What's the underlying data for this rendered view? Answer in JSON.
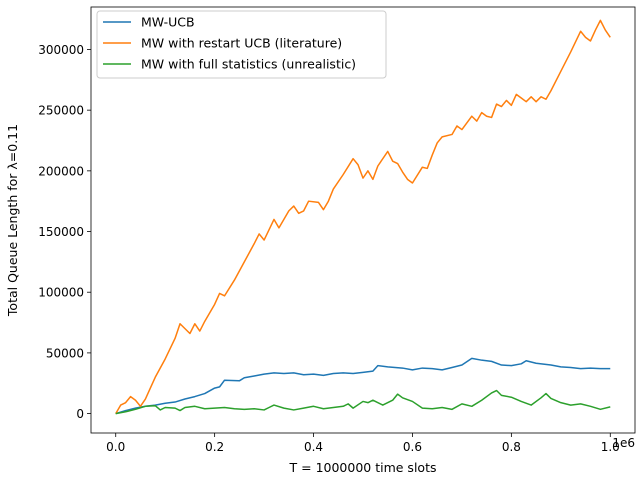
{
  "chart_data": {
    "type": "line",
    "xlabel": "T = 1000000 time slots",
    "ylabel": "Total Queue Length for λ=0.11",
    "xlim": [
      -0.05,
      1.05
    ],
    "ylim": [
      -16000,
      335000
    ],
    "x_ticks": [
      0.0,
      0.2,
      0.4,
      0.6,
      0.8,
      1.0
    ],
    "x_tick_labels": [
      "0.0",
      "0.2",
      "0.4",
      "0.6",
      "0.8",
      "1.0"
    ],
    "x_offset_label": "1e6",
    "y_ticks": [
      0,
      50000,
      100000,
      150000,
      200000,
      250000,
      300000
    ],
    "y_tick_labels": [
      "0",
      "50000",
      "100000",
      "150000",
      "200000",
      "250000",
      "300000"
    ],
    "legend_position": "upper-left",
    "grid": false,
    "series": [
      {
        "name": "MW-UCB",
        "color": "#1f77b4",
        "points": [
          [
            0.0,
            0
          ],
          [
            0.02,
            2500
          ],
          [
            0.04,
            4500
          ],
          [
            0.06,
            6000
          ],
          [
            0.08,
            7000
          ],
          [
            0.1,
            8500
          ],
          [
            0.12,
            9500
          ],
          [
            0.14,
            12000
          ],
          [
            0.16,
            14000
          ],
          [
            0.18,
            16500
          ],
          [
            0.2,
            21000
          ],
          [
            0.21,
            22000
          ],
          [
            0.22,
            27500
          ],
          [
            0.25,
            27000
          ],
          [
            0.26,
            29500
          ],
          [
            0.28,
            31000
          ],
          [
            0.3,
            32500
          ],
          [
            0.32,
            33500
          ],
          [
            0.34,
            33000
          ],
          [
            0.36,
            33500
          ],
          [
            0.38,
            32000
          ],
          [
            0.4,
            32500
          ],
          [
            0.42,
            31500
          ],
          [
            0.44,
            33000
          ],
          [
            0.46,
            33500
          ],
          [
            0.48,
            33000
          ],
          [
            0.5,
            34000
          ],
          [
            0.52,
            35000
          ],
          [
            0.53,
            39500
          ],
          [
            0.55,
            38500
          ],
          [
            0.58,
            37500
          ],
          [
            0.6,
            36000
          ],
          [
            0.62,
            37500
          ],
          [
            0.64,
            37000
          ],
          [
            0.66,
            36000
          ],
          [
            0.68,
            38000
          ],
          [
            0.7,
            40000
          ],
          [
            0.72,
            45500
          ],
          [
            0.74,
            44000
          ],
          [
            0.76,
            43000
          ],
          [
            0.78,
            40000
          ],
          [
            0.8,
            39500
          ],
          [
            0.82,
            41000
          ],
          [
            0.83,
            43500
          ],
          [
            0.85,
            41500
          ],
          [
            0.88,
            40000
          ],
          [
            0.9,
            38500
          ],
          [
            0.92,
            38000
          ],
          [
            0.94,
            37000
          ],
          [
            0.96,
            37500
          ],
          [
            0.98,
            37000
          ],
          [
            1.0,
            37000
          ]
        ]
      },
      {
        "name": "MW with restart UCB (literature)",
        "color": "#ff7f0e",
        "points": [
          [
            0.0,
            0
          ],
          [
            0.01,
            7000
          ],
          [
            0.02,
            9000
          ],
          [
            0.03,
            14000
          ],
          [
            0.04,
            11000
          ],
          [
            0.05,
            6000
          ],
          [
            0.06,
            12000
          ],
          [
            0.07,
            21000
          ],
          [
            0.08,
            30000
          ],
          [
            0.1,
            45000
          ],
          [
            0.12,
            62000
          ],
          [
            0.13,
            74000
          ],
          [
            0.14,
            70000
          ],
          [
            0.15,
            66000
          ],
          [
            0.16,
            74000
          ],
          [
            0.17,
            68000
          ],
          [
            0.18,
            76000
          ],
          [
            0.2,
            90000
          ],
          [
            0.21,
            99000
          ],
          [
            0.22,
            97000
          ],
          [
            0.24,
            110000
          ],
          [
            0.26,
            125000
          ],
          [
            0.28,
            140000
          ],
          [
            0.29,
            148000
          ],
          [
            0.3,
            143000
          ],
          [
            0.32,
            160000
          ],
          [
            0.33,
            153000
          ],
          [
            0.35,
            167000
          ],
          [
            0.36,
            171000
          ],
          [
            0.37,
            165000
          ],
          [
            0.38,
            167000
          ],
          [
            0.39,
            175000
          ],
          [
            0.41,
            174000
          ],
          [
            0.42,
            168000
          ],
          [
            0.43,
            175000
          ],
          [
            0.44,
            185000
          ],
          [
            0.46,
            197000
          ],
          [
            0.48,
            210000
          ],
          [
            0.49,
            205000
          ],
          [
            0.5,
            194000
          ],
          [
            0.51,
            200000
          ],
          [
            0.52,
            193000
          ],
          [
            0.53,
            204000
          ],
          [
            0.55,
            216000
          ],
          [
            0.56,
            208000
          ],
          [
            0.57,
            206000
          ],
          [
            0.58,
            199000
          ],
          [
            0.59,
            193000
          ],
          [
            0.6,
            190000
          ],
          [
            0.62,
            203000
          ],
          [
            0.63,
            202000
          ],
          [
            0.64,
            213000
          ],
          [
            0.65,
            223000
          ],
          [
            0.66,
            228000
          ],
          [
            0.68,
            230000
          ],
          [
            0.69,
            237000
          ],
          [
            0.7,
            234000
          ],
          [
            0.72,
            245000
          ],
          [
            0.73,
            241000
          ],
          [
            0.74,
            248000
          ],
          [
            0.75,
            245000
          ],
          [
            0.76,
            244000
          ],
          [
            0.77,
            255000
          ],
          [
            0.78,
            253000
          ],
          [
            0.79,
            258000
          ],
          [
            0.8,
            254000
          ],
          [
            0.81,
            263000
          ],
          [
            0.82,
            260000
          ],
          [
            0.83,
            257000
          ],
          [
            0.84,
            261000
          ],
          [
            0.85,
            257000
          ],
          [
            0.86,
            261000
          ],
          [
            0.87,
            259000
          ],
          [
            0.88,
            266000
          ],
          [
            0.9,
            282000
          ],
          [
            0.92,
            298000
          ],
          [
            0.94,
            315000
          ],
          [
            0.95,
            310000
          ],
          [
            0.96,
            307000
          ],
          [
            0.97,
            316000
          ],
          [
            0.98,
            324000
          ],
          [
            0.99,
            316000
          ],
          [
            1.0,
            310000
          ]
        ]
      },
      {
        "name": "MW with full statistics (unrealistic)",
        "color": "#2ca02c",
        "points": [
          [
            0.0,
            0
          ],
          [
            0.02,
            1500
          ],
          [
            0.04,
            3500
          ],
          [
            0.06,
            6000
          ],
          [
            0.08,
            6500
          ],
          [
            0.09,
            3000
          ],
          [
            0.1,
            5000
          ],
          [
            0.12,
            4500
          ],
          [
            0.13,
            2500
          ],
          [
            0.14,
            5000
          ],
          [
            0.16,
            6000
          ],
          [
            0.18,
            4000
          ],
          [
            0.2,
            4500
          ],
          [
            0.22,
            5000
          ],
          [
            0.24,
            4000
          ],
          [
            0.26,
            3500
          ],
          [
            0.28,
            4000
          ],
          [
            0.3,
            3000
          ],
          [
            0.31,
            5000
          ],
          [
            0.32,
            7000
          ],
          [
            0.34,
            4500
          ],
          [
            0.36,
            3000
          ],
          [
            0.38,
            4500
          ],
          [
            0.4,
            6000
          ],
          [
            0.42,
            4000
          ],
          [
            0.44,
            5000
          ],
          [
            0.46,
            6000
          ],
          [
            0.47,
            8000
          ],
          [
            0.48,
            4500
          ],
          [
            0.5,
            10000
          ],
          [
            0.51,
            9000
          ],
          [
            0.52,
            11000
          ],
          [
            0.54,
            7000
          ],
          [
            0.56,
            11000
          ],
          [
            0.57,
            16000
          ],
          [
            0.58,
            13000
          ],
          [
            0.6,
            10000
          ],
          [
            0.62,
            4500
          ],
          [
            0.64,
            4000
          ],
          [
            0.66,
            5000
          ],
          [
            0.68,
            3500
          ],
          [
            0.7,
            8000
          ],
          [
            0.72,
            6000
          ],
          [
            0.74,
            11000
          ],
          [
            0.76,
            17000
          ],
          [
            0.77,
            19000
          ],
          [
            0.78,
            15000
          ],
          [
            0.8,
            13500
          ],
          [
            0.82,
            10000
          ],
          [
            0.84,
            7000
          ],
          [
            0.86,
            13000
          ],
          [
            0.87,
            16500
          ],
          [
            0.88,
            12500
          ],
          [
            0.9,
            9000
          ],
          [
            0.92,
            7000
          ],
          [
            0.94,
            8000
          ],
          [
            0.96,
            6000
          ],
          [
            0.98,
            3500
          ],
          [
            1.0,
            5500
          ]
        ]
      }
    ]
  }
}
